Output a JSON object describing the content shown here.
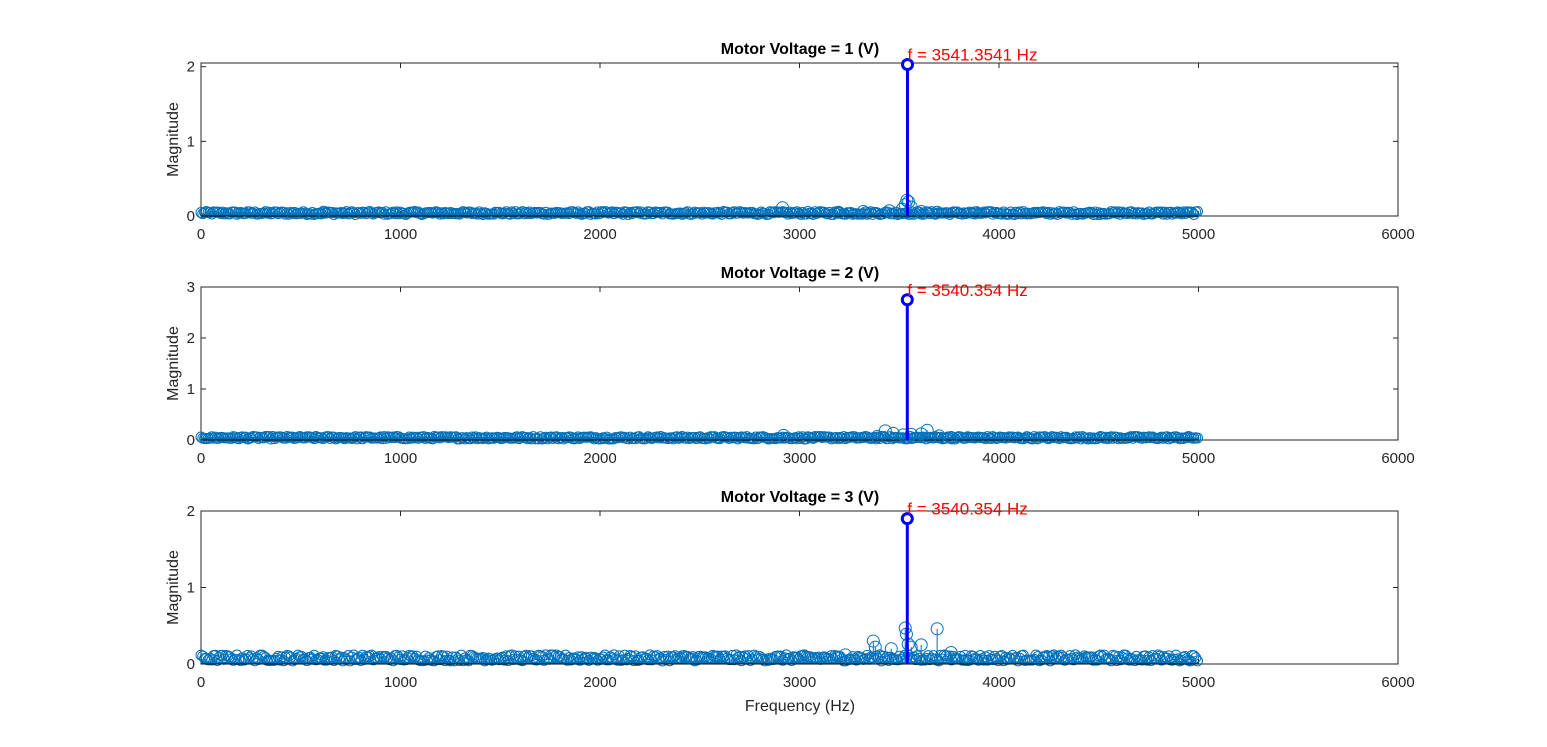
{
  "chart_data": [
    {
      "type": "stem",
      "title": "Motor Voltage = 1 (V)",
      "xlabel": "",
      "ylabel": "Magnitude",
      "xlim": [
        0,
        6000
      ],
      "ylim": [
        0,
        2.05
      ],
      "xticks": [
        0,
        1000,
        2000,
        3000,
        4000,
        5000,
        6000
      ],
      "yticks": [
        0,
        1,
        2
      ],
      "grid": false,
      "baseline": {
        "x_range": [
          0,
          5000
        ],
        "value": 0.02
      },
      "noise_level": 0.04,
      "series": [
        {
          "color": "#0072BD",
          "points": [
            [
              615,
              0.05
            ],
            [
              2915,
              0.11
            ],
            [
              3195,
              0.05
            ],
            [
              3320,
              0.06
            ],
            [
              3450,
              0.07
            ],
            [
              3515,
              0.09
            ],
            [
              3530,
              0.15
            ],
            [
              3538,
              0.21
            ],
            [
              3547,
              0.19
            ],
            [
              3560,
              0.12
            ],
            [
              3610,
              0.06
            ],
            [
              3690,
              0.05
            ],
            [
              3880,
              0.04
            ]
          ]
        },
        {
          "color": "#0000FF",
          "points": [
            [
              3541.3541,
              2.03
            ]
          ]
        }
      ],
      "annotation": {
        "x": 3541.3541,
        "text": "f = 3541.3541 Hz",
        "color": "#ff0000"
      }
    },
    {
      "type": "stem",
      "title": "Motor Voltage = 2 (V)",
      "xlabel": "",
      "ylabel": "Magnitude",
      "xlim": [
        0,
        6000
      ],
      "ylim": [
        0,
        3
      ],
      "xticks": [
        0,
        1000,
        2000,
        3000,
        4000,
        5000,
        6000
      ],
      "yticks": [
        0,
        1,
        2,
        3
      ],
      "grid": false,
      "baseline": {
        "x_range": [
          0,
          5000
        ],
        "value": 0.02
      },
      "noise_level": 0.05,
      "series": [
        {
          "color": "#0072BD",
          "points": [
            [
              2920,
              0.09
            ],
            [
              3390,
              0.07
            ],
            [
              3430,
              0.18
            ],
            [
              3470,
              0.13
            ],
            [
              3520,
              0.1
            ],
            [
              3560,
              0.11
            ],
            [
              3610,
              0.12
            ],
            [
              3640,
              0.19
            ],
            [
              3700,
              0.08
            ],
            [
              3760,
              0.05
            ]
          ]
        },
        {
          "color": "#0000FF",
          "points": [
            [
              3540.354,
              2.75
            ]
          ]
        }
      ],
      "annotation": {
        "x": 3540.354,
        "text": "f = 3540.354 Hz",
        "color": "#ff0000"
      }
    },
    {
      "type": "stem",
      "title": "Motor Voltage = 3 (V)",
      "xlabel": "Frequency (Hz)",
      "ylabel": "Magnitude",
      "xlim": [
        0,
        6000
      ],
      "ylim": [
        0,
        2
      ],
      "xticks": [
        0,
        1000,
        2000,
        3000,
        4000,
        5000,
        6000
      ],
      "yticks": [
        0,
        1,
        2
      ],
      "grid": false,
      "baseline": {
        "x_range": [
          0,
          5000
        ],
        "value": 0.04
      },
      "noise_level": 0.08,
      "series": [
        {
          "color": "#0072BD",
          "points": [
            [
              3230,
              0.12
            ],
            [
              3370,
              0.3
            ],
            [
              3380,
              0.22
            ],
            [
              3460,
              0.2
            ],
            [
              3530,
              0.47
            ],
            [
              3536,
              0.39
            ],
            [
              3545,
              0.26
            ],
            [
              3560,
              0.22
            ],
            [
              3610,
              0.25
            ],
            [
              3690,
              0.46
            ],
            [
              3760,
              0.15
            ],
            [
              3830,
              0.1
            ]
          ]
        },
        {
          "color": "#0000FF",
          "points": [
            [
              3540.354,
              1.9
            ]
          ]
        }
      ],
      "annotation": {
        "x": 3540.354,
        "text": "f = 3540.354 Hz",
        "color": "#ff0000"
      }
    }
  ]
}
